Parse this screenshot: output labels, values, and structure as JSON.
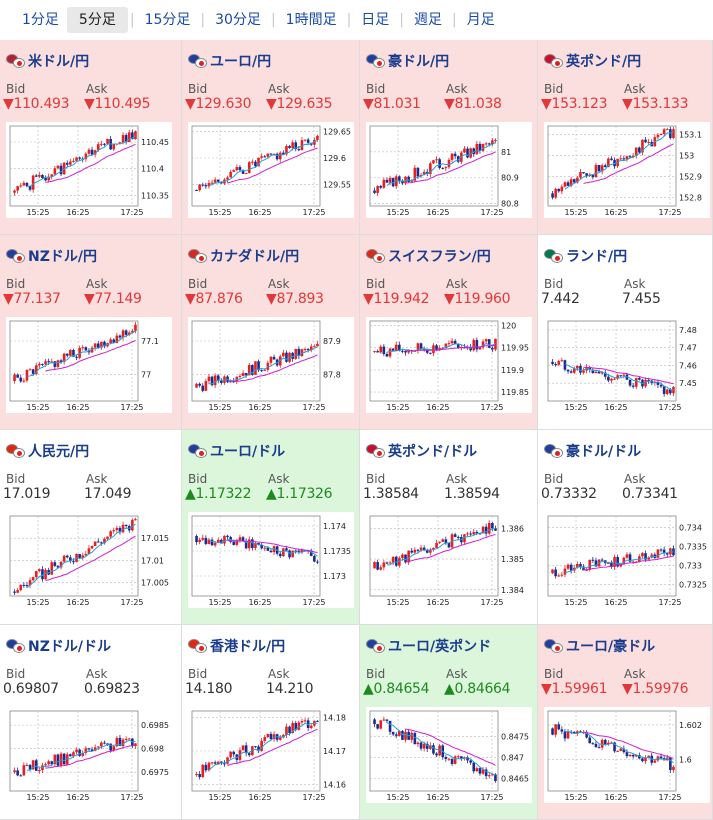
{
  "tabs": [
    {
      "label": "1分足",
      "active": false
    },
    {
      "label": "5分足",
      "active": true
    },
    {
      "label": "15分足",
      "active": false
    },
    {
      "label": "30分足",
      "active": false
    },
    {
      "label": "1時間足",
      "active": false
    },
    {
      "label": "日足",
      "active": false
    },
    {
      "label": "週足",
      "active": false
    },
    {
      "label": "月足",
      "active": false
    }
  ],
  "bid_label": "Bid",
  "ask_label": "Ask",
  "colors": {
    "down_bg": "#fbdede",
    "up_bg": "#dcf6dc",
    "down_text": "#e23838",
    "up_text": "#1e8a1e",
    "bull_candle": "#e62020",
    "bear_candle": "#1c2a8c",
    "ma_short": "#2a9fd8",
    "ma_long": "#d020d0"
  },
  "panels": [
    {
      "pair": "米ドル/円",
      "flag_a": "#b22234",
      "status": "down",
      "bid": "▼110.493",
      "ask": "▼110.495",
      "chart_data": {
        "type": "candlestick",
        "x_ticks": [
          "15:25",
          "16:25",
          "17:25"
        ],
        "y_ticks": [
          110.45,
          110.4,
          110.35
        ],
        "ylim": [
          110.33,
          110.48
        ],
        "start": 110.355,
        "end": 110.47,
        "seed": 1
      }
    },
    {
      "pair": "ユーロ/円",
      "flag_a": "#1f3fa0",
      "status": "down",
      "bid": "▼129.630",
      "ask": "▼129.635",
      "chart_data": {
        "type": "candlestick",
        "x_ticks": [
          "15:25",
          "16:25",
          "17:25"
        ],
        "y_ticks": [
          129.65,
          129.6,
          129.55
        ],
        "ylim": [
          129.51,
          129.66
        ],
        "start": 129.54,
        "end": 129.64,
        "seed": 2
      }
    },
    {
      "pair": "豪ドル/円",
      "flag_a": "#1f3fa0",
      "status": "down",
      "bid": "▼81.031",
      "ask": "▼81.038",
      "chart_data": {
        "type": "candlestick",
        "x_ticks": [
          "15:25",
          "16:25",
          "17:25"
        ],
        "y_ticks": [
          81,
          80.9,
          80.8
        ],
        "ylim": [
          80.79,
          81.1
        ],
        "start": 80.85,
        "end": 81.04,
        "seed": 3
      }
    },
    {
      "pair": "英ポンド/円",
      "flag_a": "#c8102e",
      "status": "down",
      "bid": "▼153.123",
      "ask": "▼153.133",
      "chart_data": {
        "type": "candlestick",
        "x_ticks": [
          "15:25",
          "16:25",
          "17:25"
        ],
        "y_ticks": [
          153.1,
          153,
          152.9,
          152.8
        ],
        "ylim": [
          152.76,
          153.14
        ],
        "start": 152.82,
        "end": 153.12,
        "seed": 4
      }
    },
    {
      "pair": "NZドル/円",
      "flag_a": "#1f3fa0",
      "status": "down",
      "bid": "▼77.137",
      "ask": "▼77.149",
      "chart_data": {
        "type": "candlestick",
        "x_ticks": [
          "15:25",
          "16:25",
          "17:25"
        ],
        "y_ticks": [
          77.1,
          77
        ],
        "ylim": [
          76.92,
          77.16
        ],
        "start": 76.98,
        "end": 77.14,
        "seed": 5
      }
    },
    {
      "pair": "カナダドル/円",
      "flag_a": "#d52b1e",
      "status": "down",
      "bid": "▼87.876",
      "ask": "▼87.893",
      "chart_data": {
        "type": "candlestick",
        "x_ticks": [
          "15:25",
          "16:25",
          "17:25"
        ],
        "y_ticks": [
          87.9,
          87.8
        ],
        "ylim": [
          87.72,
          87.96
        ],
        "start": 87.76,
        "end": 87.88,
        "seed": 6
      }
    },
    {
      "pair": "スイスフラン/円",
      "flag_a": "#d52b1e",
      "status": "down",
      "bid": "▼119.942",
      "ask": "▼119.960",
      "chart_data": {
        "type": "candlestick",
        "x_ticks": [
          "15:25",
          "16:25",
          "17:25"
        ],
        "y_ticks": [
          120,
          119.95,
          119.9,
          119.85
        ],
        "ylim": [
          119.83,
          120.01
        ],
        "start": 119.94,
        "end": 119.96,
        "seed": 7
      }
    },
    {
      "pair": "ランド/円",
      "flag_a": "#007a4d",
      "status": "neutral",
      "bid": "7.442",
      "ask": "7.455",
      "chart_data": {
        "type": "candlestick",
        "x_ticks": [
          "15:25",
          "16:25",
          "17:25"
        ],
        "y_ticks": [
          7.48,
          7.47,
          7.46,
          7.45
        ],
        "ylim": [
          7.44,
          7.485
        ],
        "start": 7.462,
        "end": 7.445,
        "seed": 8
      }
    },
    {
      "pair": "人民元/円",
      "flag_a": "#de2910",
      "status": "neutral",
      "bid": "17.019",
      "ask": "17.049",
      "chart_data": {
        "type": "candlestick",
        "x_ticks": [
          "15:25",
          "16:25",
          "17:25"
        ],
        "y_ticks": [
          17.015,
          17.01,
          17.005
        ],
        "ylim": [
          17.002,
          17.02
        ],
        "start": 17.003,
        "end": 17.019,
        "seed": 9
      }
    },
    {
      "pair": "ユーロ/ドル",
      "flag_a": "#1f3fa0",
      "status": "up",
      "bid": "▲1.17322",
      "ask": "▲1.17326",
      "chart_data": {
        "type": "candlestick",
        "x_ticks": [
          "15:25",
          "16:25",
          "17:25"
        ],
        "y_ticks": [
          1.174,
          1.1735,
          1.173
        ],
        "ylim": [
          1.1726,
          1.1742
        ],
        "start": 1.1738,
        "end": 1.1734,
        "seed": 10
      }
    },
    {
      "pair": "英ポンド/ドル",
      "flag_a": "#c8102e",
      "status": "neutral",
      "bid": "1.38584",
      "ask": "1.38594",
      "chart_data": {
        "type": "candlestick",
        "x_ticks": [
          "15:25",
          "16:25",
          "17:25"
        ],
        "y_ticks": [
          1.386,
          1.385,
          1.384
        ],
        "ylim": [
          1.3838,
          1.3864
        ],
        "start": 1.3847,
        "end": 1.3861,
        "seed": 11
      }
    },
    {
      "pair": "豪ドル/ドル",
      "flag_a": "#1f3fa0",
      "status": "neutral",
      "bid": "0.73332",
      "ask": "0.73341",
      "chart_data": {
        "type": "candlestick",
        "x_ticks": [
          "15:25",
          "16:25",
          "17:25"
        ],
        "y_ticks": [
          0.734,
          0.7335,
          0.733,
          0.7325
        ],
        "ylim": [
          0.7322,
          0.7343
        ],
        "start": 0.7328,
        "end": 0.7334,
        "seed": 12
      }
    },
    {
      "pair": "NZドル/ドル",
      "flag_a": "#1f3fa0",
      "status": "neutral",
      "bid": "0.69807",
      "ask": "0.69823",
      "chart_data": {
        "type": "candlestick",
        "x_ticks": [
          "15:25",
          "16:25",
          "17:25"
        ],
        "y_ticks": [
          0.6985,
          0.698,
          0.6975
        ],
        "ylim": [
          0.6971,
          0.6988
        ],
        "start": 0.6975,
        "end": 0.6982,
        "seed": 13
      }
    },
    {
      "pair": "香港ドル/円",
      "flag_a": "#de2910",
      "status": "neutral",
      "bid": "14.180",
      "ask": "14.210",
      "chart_data": {
        "type": "candlestick",
        "x_ticks": [
          "15:25",
          "16:25",
          "17:25"
        ],
        "y_ticks": [
          14.18,
          14.17,
          14.16
        ],
        "ylim": [
          14.158,
          14.182
        ],
        "start": 14.163,
        "end": 14.18,
        "seed": 14
      }
    },
    {
      "pair": "ユーロ/英ポンド",
      "flag_a": "#1f3fa0",
      "status": "up",
      "bid": "▲0.84654",
      "ask": "▲0.84664",
      "chart_data": {
        "type": "candlestick",
        "x_ticks": [
          "15:25",
          "16:25",
          "17:25"
        ],
        "y_ticks": [
          0.8475,
          0.847,
          0.8465
        ],
        "ylim": [
          0.8462,
          0.8481
        ],
        "start": 0.8479,
        "end": 0.8465,
        "seed": 15
      }
    },
    {
      "pair": "ユーロ/豪ドル",
      "flag_a": "#1f3fa0",
      "status": "down",
      "bid": "▼1.59961",
      "ask": "▼1.59976",
      "chart_data": {
        "type": "candlestick",
        "x_ticks": [
          "15:25",
          "16:25",
          "17:25"
        ],
        "y_ticks": [
          1.602,
          1.6
        ],
        "ylim": [
          1.5982,
          1.6028
        ],
        "start": 1.6018,
        "end": 1.5997,
        "seed": 16
      }
    }
  ]
}
